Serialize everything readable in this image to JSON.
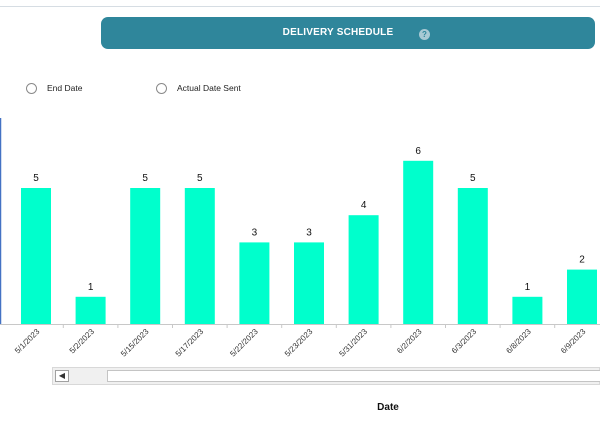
{
  "header": {
    "title": "DELIVERY SCHEDULE",
    "help_icon": "question-circle-icon"
  },
  "filters": [
    {
      "label": "End Date"
    },
    {
      "label": "Actual Date Sent"
    }
  ],
  "chart_data": {
    "type": "bar",
    "categories": [
      "5/1/2023",
      "5/2/2023",
      "5/15/2023",
      "5/17/2023",
      "5/22/2023",
      "5/23/2023",
      "5/31/2023",
      "6/2/2023",
      "6/3/2023",
      "6/8/2023",
      "6/9/2023"
    ],
    "values": [
      5,
      1,
      5,
      5,
      3,
      3,
      4,
      6,
      5,
      1,
      2
    ],
    "xlabel": "Date",
    "ylabel": "",
    "ylim": [
      0,
      6
    ],
    "grid": false,
    "bar_color": "#00ffcc",
    "data_labels": true
  },
  "scrollbar": {
    "left_arrow": "◀"
  }
}
